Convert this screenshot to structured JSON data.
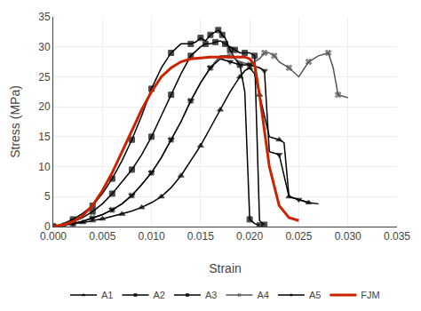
{
  "chart_data": {
    "type": "line",
    "xlabel": "Strain",
    "ylabel": "Stress (MPa)",
    "xlim": [
      0.0,
      0.035
    ],
    "ylim": [
      0,
      35
    ],
    "xticks": [
      {
        "value": 0.0,
        "label": "0.000"
      },
      0.005,
      {
        "value": 0.01,
        "label": "0.010"
      },
      0.015,
      {
        "value": 0.02,
        "label": "0.020"
      },
      0.025,
      {
        "value": 0.03,
        "label": "0.030"
      },
      0.035
    ],
    "yticks": [
      0,
      5,
      10,
      15,
      20,
      25,
      30,
      35
    ],
    "grid": true,
    "legend": "bottom",
    "series": [
      {
        "name": "A1",
        "color": "#000000",
        "marker": "triangle-up",
        "x": [
          0.0,
          0.0005,
          0.001,
          0.0015,
          0.002,
          0.0025,
          0.003,
          0.0035,
          0.004,
          0.0045,
          0.005,
          0.006,
          0.007,
          0.008,
          0.009,
          0.01,
          0.011,
          0.012,
          0.013,
          0.014,
          0.015,
          0.016,
          0.017,
          0.018,
          0.019,
          0.0195,
          0.02,
          0.0205,
          0.021,
          0.022,
          0.023,
          0.0235,
          0.024,
          0.025,
          0.026,
          0.027
        ],
        "values": [
          0.0,
          0.1,
          0.2,
          0.3,
          0.4,
          0.5,
          0.7,
          0.8,
          1.0,
          1.1,
          1.3,
          1.7,
          2.1,
          2.6,
          3.2,
          4.0,
          5.0,
          6.5,
          8.5,
          11.0,
          13.5,
          16.5,
          19.5,
          22.5,
          25.0,
          26.0,
          26.5,
          25.5,
          22.0,
          15.0,
          14.5,
          14.0,
          5.0,
          4.5,
          4.0,
          3.8
        ]
      },
      {
        "name": "A2",
        "color": "#000000",
        "marker": "square",
        "x": [
          0.0,
          0.001,
          0.002,
          0.003,
          0.004,
          0.005,
          0.006,
          0.007,
          0.008,
          0.009,
          0.01,
          0.011,
          0.012,
          0.013,
          0.014,
          0.015,
          0.0155,
          0.016,
          0.0165,
          0.017,
          0.0175,
          0.018,
          0.0185,
          0.019,
          0.0195,
          0.02,
          0.0205,
          0.021,
          0.0215
        ],
        "values": [
          0.0,
          0.3,
          0.8,
          1.5,
          2.5,
          3.8,
          5.5,
          7.5,
          9.5,
          12.0,
          15.0,
          18.5,
          22.0,
          25.5,
          28.5,
          30.0,
          30.5,
          30.5,
          30.8,
          31.0,
          30.5,
          30.0,
          29.5,
          29.0,
          29.0,
          29.0,
          28.5,
          1.0,
          0.3
        ]
      },
      {
        "name": "A3",
        "color": "#000000",
        "marker": "square",
        "x": [
          0.0,
          0.001,
          0.002,
          0.003,
          0.004,
          0.005,
          0.006,
          0.007,
          0.008,
          0.009,
          0.01,
          0.011,
          0.012,
          0.013,
          0.014,
          0.0145,
          0.015,
          0.0155,
          0.016,
          0.0165,
          0.0168,
          0.017,
          0.0172,
          0.0175,
          0.018,
          0.0185,
          0.019,
          0.0195,
          0.02,
          0.0205,
          0.021
        ],
        "values": [
          0.0,
          0.5,
          1.2,
          2.2,
          3.5,
          5.5,
          8.0,
          11.0,
          14.5,
          18.5,
          23.0,
          26.5,
          29.0,
          30.5,
          30.5,
          30.8,
          31.5,
          31.0,
          32.0,
          32.5,
          32.8,
          32.5,
          32.0,
          31.5,
          29.5,
          28.0,
          27.0,
          22.5,
          1.2,
          0.5,
          0.2
        ]
      },
      {
        "name": "A4",
        "color": "#555555",
        "marker": "x",
        "x": [
          0.0,
          0.001,
          0.002,
          0.003,
          0.004,
          0.005,
          0.006,
          0.007,
          0.008,
          0.009,
          0.01,
          0.011,
          0.012,
          0.013,
          0.014,
          0.015,
          0.016,
          0.017,
          0.018,
          0.019,
          0.02,
          0.021,
          0.0215,
          0.022,
          0.0225,
          0.023,
          0.024,
          0.025,
          0.026,
          0.027,
          0.028,
          0.0285,
          0.029,
          0.03
        ],
        "values": [
          0.0,
          0.2,
          0.5,
          0.9,
          1.4,
          2.0,
          2.8,
          3.8,
          5.2,
          7.0,
          9.0,
          11.5,
          14.5,
          17.5,
          21.0,
          24.0,
          26.5,
          28.5,
          28.5,
          27.5,
          27.0,
          28.0,
          29.0,
          29.0,
          28.5,
          27.5,
          26.5,
          25.0,
          27.5,
          28.5,
          29.0,
          26.5,
          22.0,
          21.5
        ]
      },
      {
        "name": "A5",
        "color": "#000000",
        "marker": "triangle-down",
        "x": [
          0.0,
          0.001,
          0.002,
          0.003,
          0.004,
          0.005,
          0.006,
          0.007,
          0.008,
          0.009,
          0.01,
          0.011,
          0.012,
          0.013,
          0.014,
          0.015,
          0.016,
          0.017,
          0.018,
          0.019,
          0.02,
          0.021,
          0.0215,
          0.022,
          0.023,
          0.024,
          0.025,
          0.026
        ],
        "values": [
          0.0,
          0.2,
          0.5,
          0.9,
          1.4,
          2.0,
          2.8,
          3.8,
          5.2,
          7.0,
          9.0,
          11.5,
          14.5,
          17.5,
          21.0,
          24.0,
          26.5,
          28.0,
          27.5,
          27.0,
          27.0,
          26.5,
          26.0,
          12.5,
          12.0,
          5.0,
          4.5,
          4.0
        ]
      },
      {
        "name": "FJM",
        "color": "#cc2200",
        "marker": "none",
        "x": [
          0.0,
          0.001,
          0.002,
          0.003,
          0.004,
          0.005,
          0.006,
          0.007,
          0.008,
          0.009,
          0.01,
          0.011,
          0.012,
          0.013,
          0.014,
          0.015,
          0.016,
          0.017,
          0.018,
          0.019,
          0.0195,
          0.02,
          0.0205,
          0.021,
          0.022,
          0.023,
          0.024,
          0.025
        ],
        "values": [
          0.0,
          0.3,
          0.8,
          1.8,
          3.5,
          6.0,
          9.0,
          12.5,
          16.0,
          19.5,
          22.5,
          25.0,
          26.5,
          27.5,
          28.0,
          28.2,
          28.3,
          28.3,
          28.3,
          28.2,
          28.3,
          28.0,
          27.0,
          22.0,
          10.0,
          3.5,
          1.5,
          1.0
        ]
      }
    ]
  }
}
